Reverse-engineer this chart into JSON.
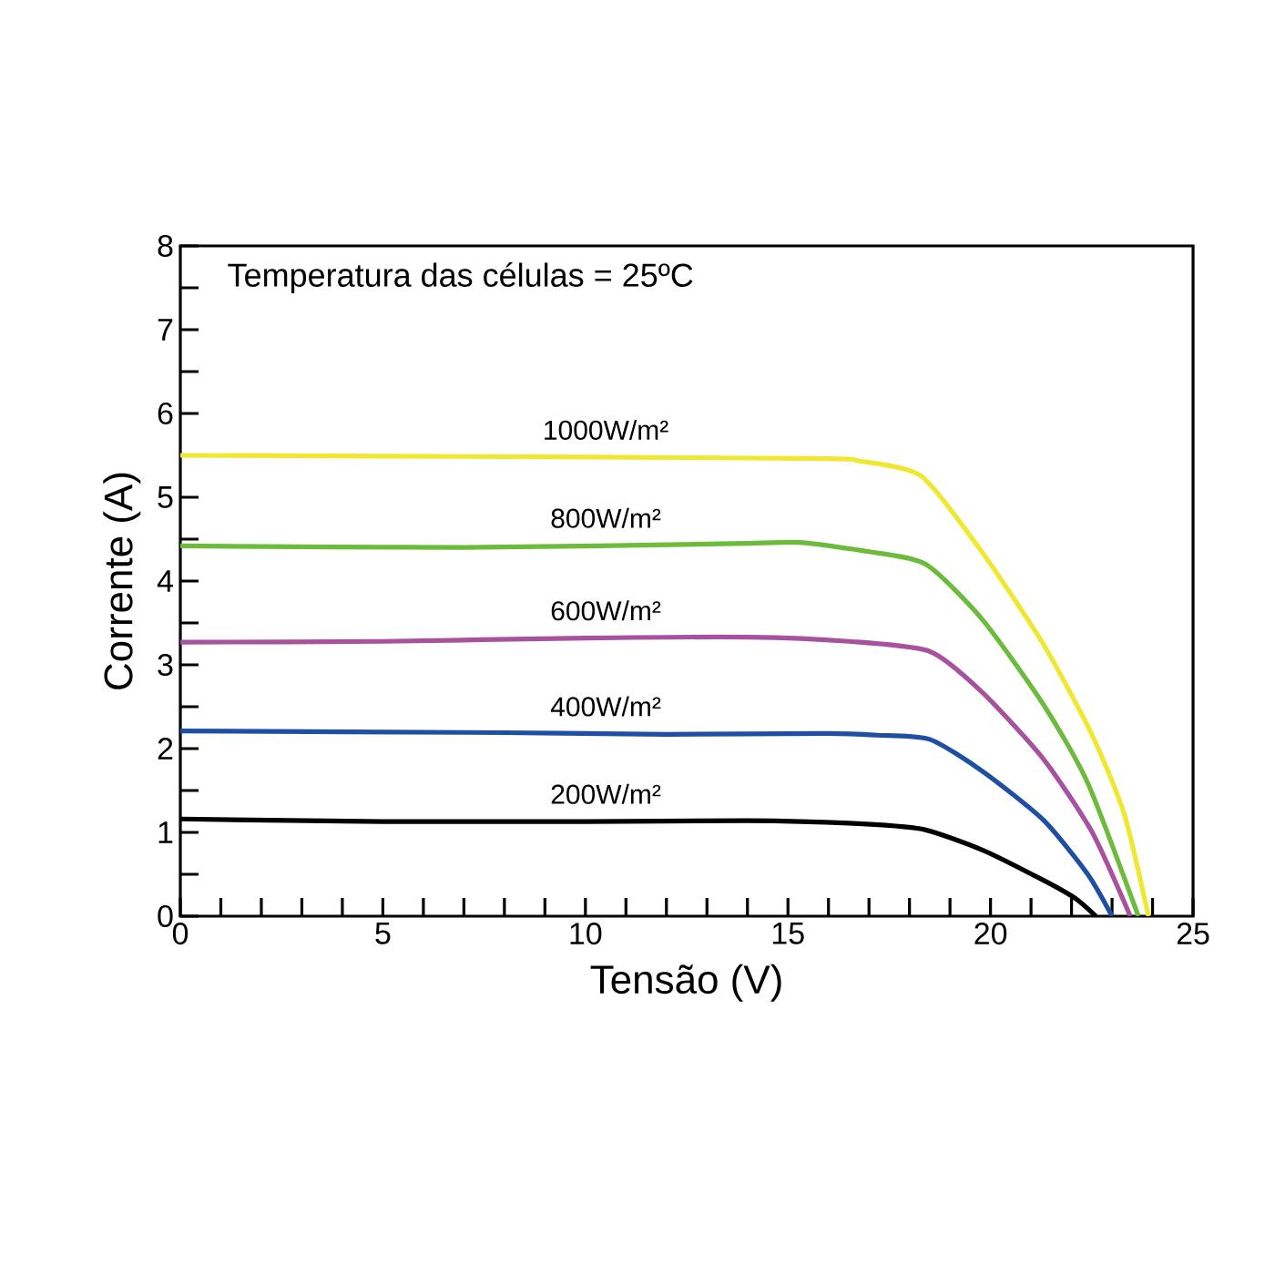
{
  "chart_data": {
    "type": "line",
    "xlabel": "Tensão (V)",
    "ylabel": "Corrente (A)",
    "xlim": [
      0,
      25
    ],
    "ylim": [
      0,
      8
    ],
    "xticks": [
      0,
      {
        "value": 1,
        "label": null
      },
      {
        "value": 2,
        "label": null
      },
      {
        "value": 3,
        "label": null
      },
      {
        "value": 4,
        "label": null
      },
      5,
      {
        "value": 6,
        "label": null
      },
      {
        "value": 7,
        "label": null
      },
      {
        "value": 8,
        "label": null
      },
      {
        "value": 9,
        "label": null
      },
      10,
      {
        "value": 11,
        "label": null
      },
      {
        "value": 12,
        "label": null
      },
      {
        "value": 13,
        "label": null
      },
      {
        "value": 14,
        "label": null
      },
      15,
      {
        "value": 16,
        "label": null
      },
      {
        "value": 17,
        "label": null
      },
      {
        "value": 18,
        "label": null
      },
      {
        "value": 19,
        "label": null
      },
      20,
      {
        "value": 21,
        "label": null
      },
      {
        "value": 22,
        "label": null
      },
      {
        "value": 23,
        "label": null
      },
      {
        "value": 24,
        "label": null
      },
      25
    ],
    "yticks": [
      0,
      {
        "value": 0.5,
        "label": null
      },
      1,
      {
        "value": 1.5,
        "label": null
      },
      2,
      {
        "value": 2.5,
        "label": null
      },
      3,
      {
        "value": 3.5,
        "label": null
      },
      4,
      {
        "value": 4.5,
        "label": null
      },
      5,
      {
        "value": 5.5,
        "label": null
      },
      6,
      {
        "value": 6.5,
        "label": null
      },
      7,
      {
        "value": 7.5,
        "label": null
      },
      8
    ],
    "grid": false,
    "legend": false,
    "marker": "none",
    "line_style": "solid",
    "series": [
      {
        "name": "1000W/m²",
        "color": "#f0e830",
        "x": [
          0,
          10,
          16,
          16.8,
          18.3,
          19.8,
          21.3,
          22.5,
          23.3,
          23.9
        ],
        "values": [
          5.5,
          5.48,
          5.46,
          5.43,
          5.25,
          4.34,
          3.25,
          2.17,
          1.22,
          0
        ]
      },
      {
        "name": "800W/m²",
        "color": "#6cbb3c",
        "x": [
          0,
          7,
          14,
          15.3,
          17,
          18.4,
          19.8,
          21.3,
          22.4,
          23.65
        ],
        "values": [
          4.42,
          4.4,
          4.45,
          4.46,
          4.35,
          4.2,
          3.54,
          2.53,
          1.59,
          0
        ]
      },
      {
        "name": "600W/m²",
        "color": "#a8519f",
        "x": [
          0,
          5,
          10,
          14,
          16.5,
          18.5,
          19.8,
          21.3,
          22.5,
          23.45
        ],
        "values": [
          3.27,
          3.28,
          3.32,
          3.33,
          3.28,
          3.16,
          2.67,
          1.88,
          1.01,
          0
        ]
      },
      {
        "name": "400W/m²",
        "color": "#1f4fa3",
        "x": [
          0,
          8,
          12,
          16,
          17.2,
          18.5,
          19.8,
          21.3,
          22.4,
          23.0
        ],
        "values": [
          2.21,
          2.19,
          2.17,
          2.18,
          2.16,
          2.11,
          1.73,
          1.15,
          0.5,
          0
        ]
      },
      {
        "name": "200W/m²",
        "color": "#000000",
        "x": [
          0,
          5,
          10,
          14,
          16.5,
          18.3,
          19.8,
          21.3,
          22.1,
          22.6
        ],
        "values": [
          1.16,
          1.13,
          1.13,
          1.14,
          1.11,
          1.04,
          0.79,
          0.43,
          0.21,
          0
        ]
      }
    ],
    "annotations": [
      "Temperatura das células = 25ºC"
    ]
  }
}
